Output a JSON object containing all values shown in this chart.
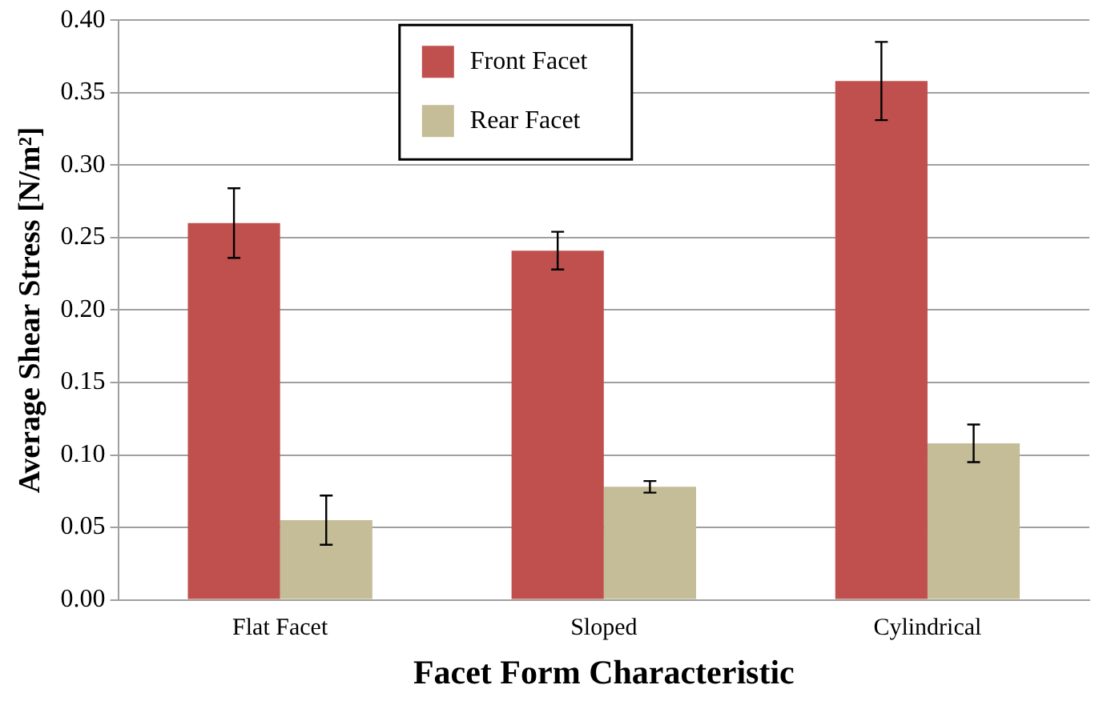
{
  "chart_data": {
    "type": "bar",
    "xlabel": "Facet Form Characteristic",
    "ylabel": "Average Shear Stress [N/m²]",
    "categories": [
      "Flat Facet",
      "Sloped",
      "Cylindrical"
    ],
    "series": [
      {
        "name": "Front Facet",
        "color": "#c0504d",
        "values": [
          0.26,
          0.241,
          0.358
        ],
        "errors": [
          0.024,
          0.013,
          0.027
        ]
      },
      {
        "name": "Rear Facet",
        "color": "#c4bd97",
        "values": [
          0.055,
          0.078,
          0.108
        ],
        "errors": [
          0.017,
          0.004,
          0.013
        ]
      }
    ],
    "ylim": [
      0,
      0.4
    ],
    "yticks": [
      {
        "value": 0,
        "label": "0.00"
      },
      {
        "value": 0.05,
        "label": "0.05"
      },
      {
        "value": 0.1,
        "label": "0.10"
      },
      {
        "value": 0.15,
        "label": "0.15"
      },
      {
        "value": 0.2,
        "label": "0.20"
      },
      {
        "value": 0.25,
        "label": "0.25"
      },
      {
        "value": 0.3,
        "label": "0.30"
      },
      {
        "value": 0.35,
        "label": "0.35"
      },
      {
        "value": 0.4,
        "label": "0.40"
      }
    ],
    "grid": "y",
    "legend": "top"
  }
}
